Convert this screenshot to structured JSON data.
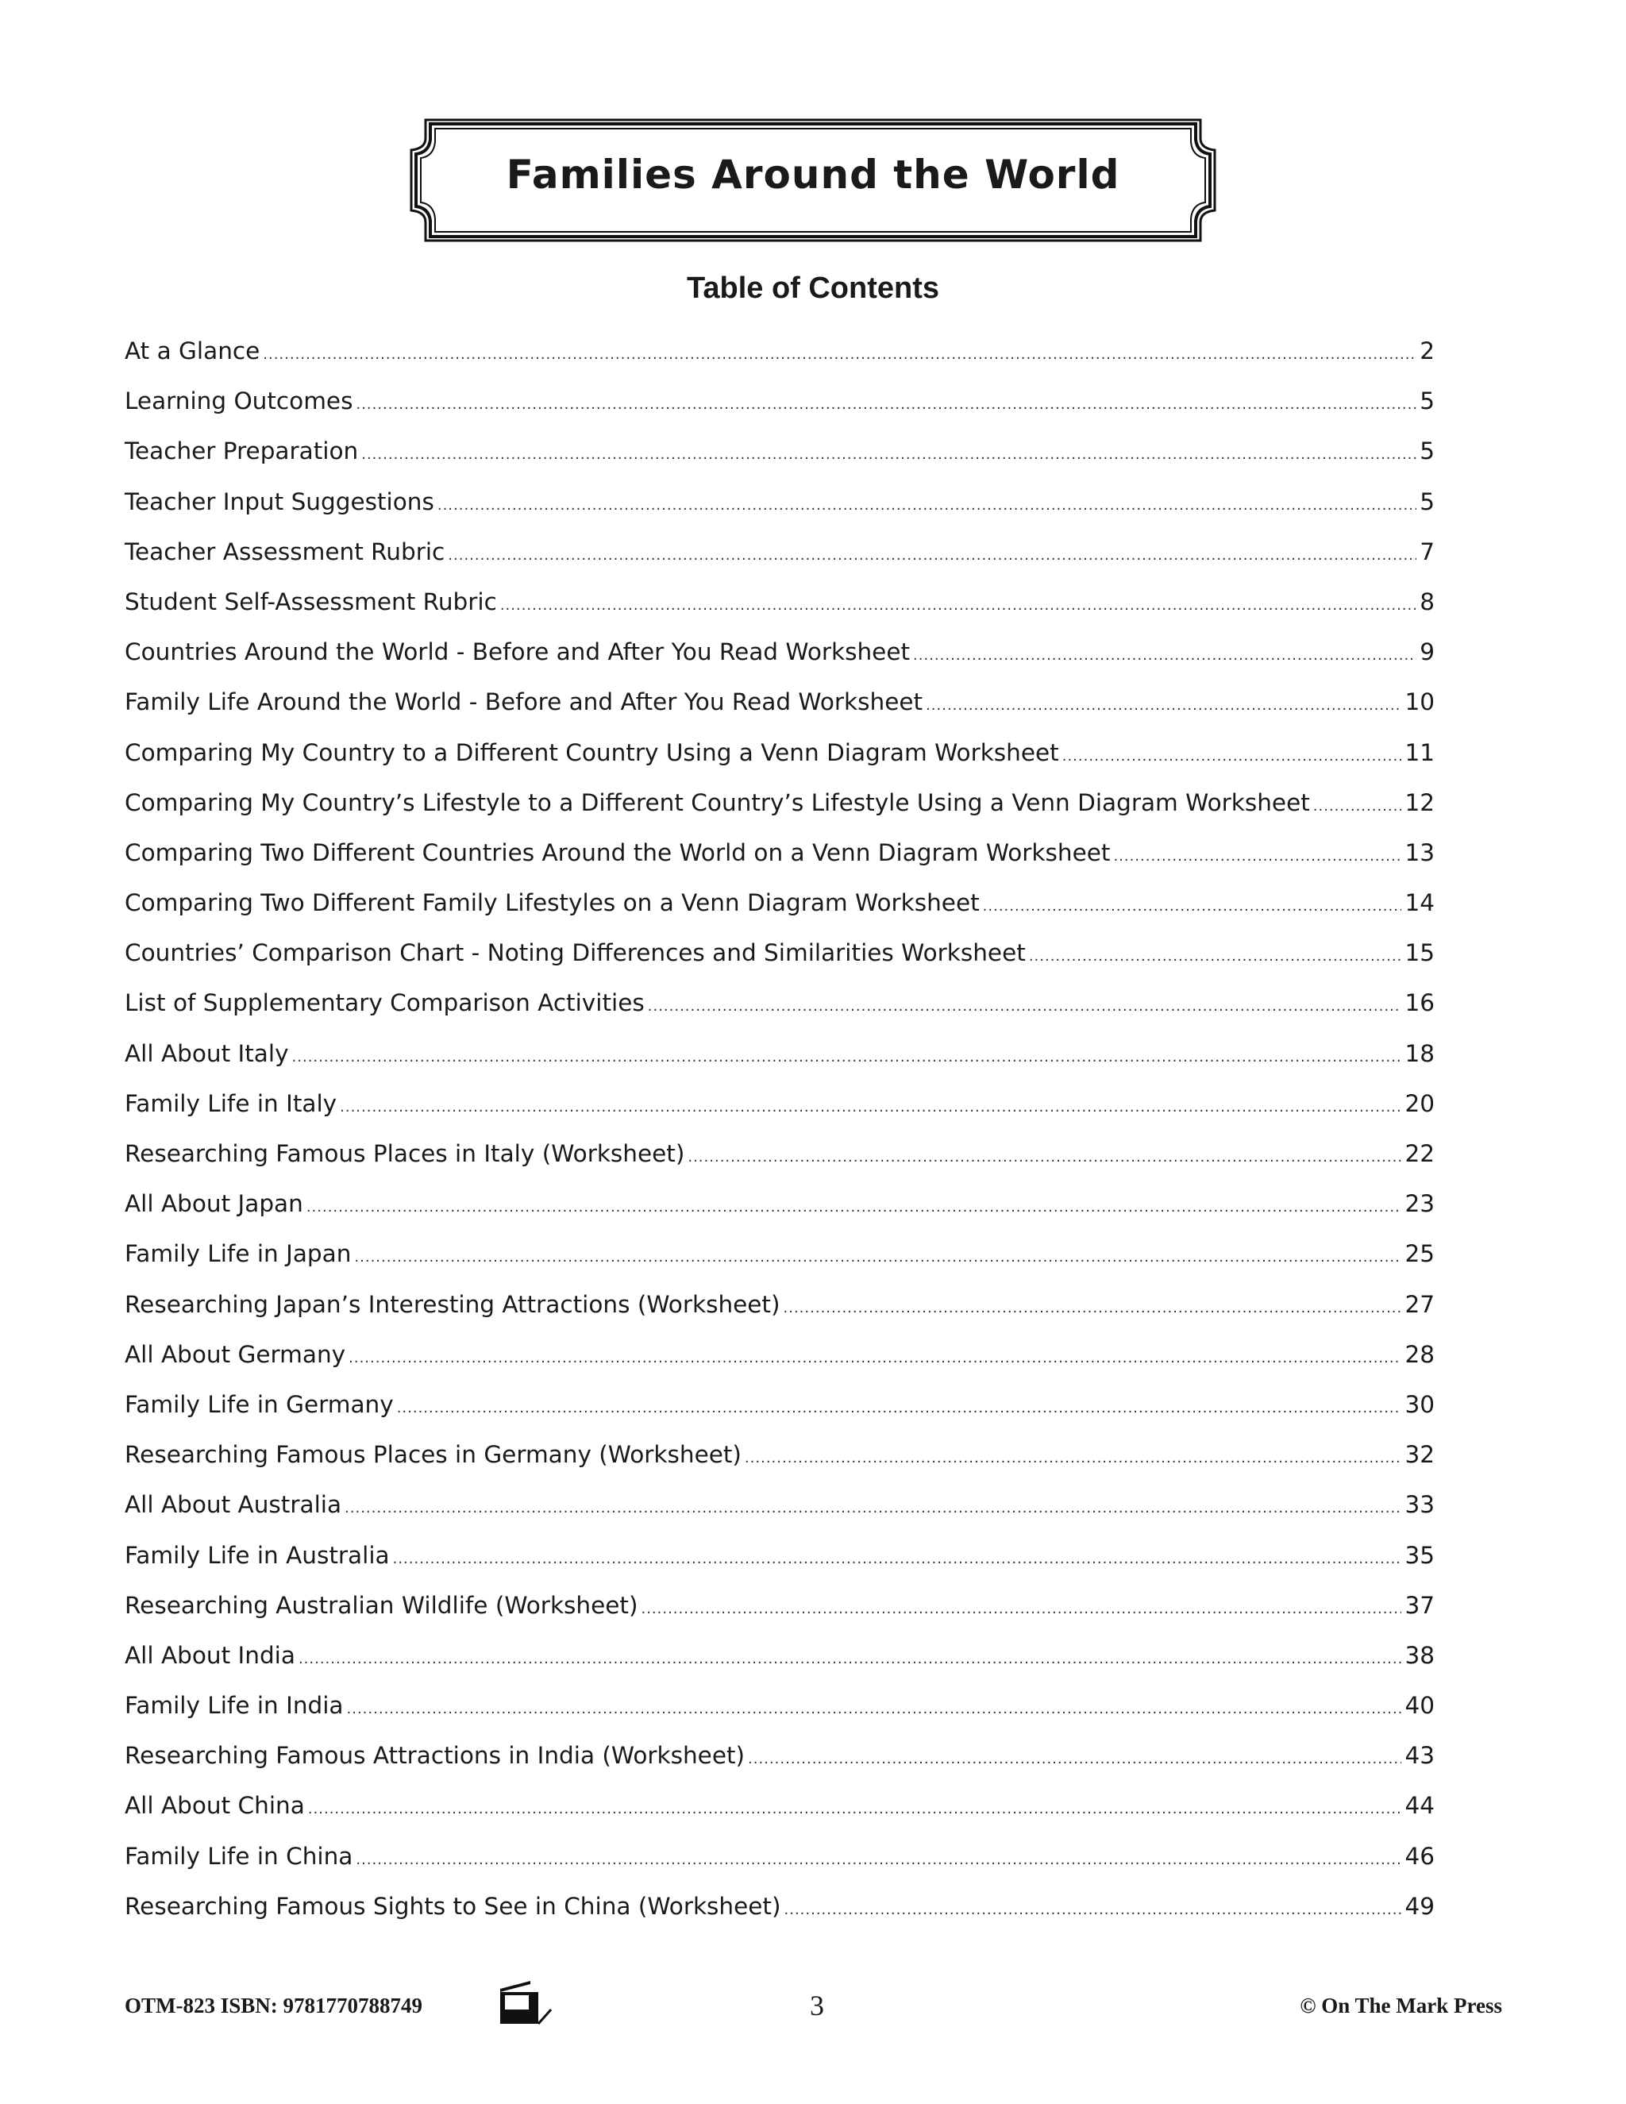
{
  "header": {
    "title": "Families Around the World",
    "toc_heading": "Table of Contents"
  },
  "toc": [
    {
      "label": "At a Glance",
      "page": "2"
    },
    {
      "label": "Learning Outcomes",
      "page": "5"
    },
    {
      "label": "Teacher Preparation",
      "page": "5"
    },
    {
      "label": "Teacher Input Suggestions",
      "page": "5"
    },
    {
      "label": "Teacher Assessment Rubric",
      "page": "7"
    },
    {
      "label": "Student Self-Assessment Rubric",
      "page": "8"
    },
    {
      "label": "Countries Around the World - Before and After You Read Worksheet",
      "page": "9"
    },
    {
      "label": "Family Life Around the World - Before and After You Read Worksheet",
      "page": "10"
    },
    {
      "label": "Comparing My Country to a Different Country Using a Venn Diagram Worksheet",
      "page": "11"
    },
    {
      "label": "Comparing My Country’s Lifestyle to a Different Country’s Lifestyle Using a Venn Diagram Worksheet",
      "page": "12"
    },
    {
      "label": "Comparing Two Different Countries Around the World on a Venn Diagram Worksheet",
      "page": "13"
    },
    {
      "label": "Comparing Two Different Family Lifestyles on a Venn Diagram Worksheet",
      "page": "14"
    },
    {
      "label": "Countries’ Comparison Chart - Noting Differences and Similarities Worksheet",
      "page": "15"
    },
    {
      "label": "List of Supplementary Comparison Activities",
      "page": "16"
    },
    {
      "label": "All About Italy",
      "page": "18"
    },
    {
      "label": "Family Life in Italy",
      "page": "20"
    },
    {
      "label": "Researching Famous Places in Italy (Worksheet)",
      "page": "22"
    },
    {
      "label": "All About Japan",
      "page": "23"
    },
    {
      "label": "Family Life in Japan",
      "page": "25"
    },
    {
      "label": "Researching Japan’s Interesting Attractions (Worksheet)",
      "page": "27"
    },
    {
      "label": "All About Germany",
      "page": "28"
    },
    {
      "label": "Family Life in Germany",
      "page": "30"
    },
    {
      "label": "Researching Famous Places in Germany (Worksheet)",
      "page": "32"
    },
    {
      "label": "All About Australia",
      "page": "33"
    },
    {
      "label": "Family Life in Australia",
      "page": "35"
    },
    {
      "label": "Researching Australian Wildlife (Worksheet)",
      "page": "37"
    },
    {
      "label": "All About India",
      "page": "38"
    },
    {
      "label": "Family Life in India",
      "page": "40"
    },
    {
      "label": "Researching Famous  Attractions in India (Worksheet)",
      "page": "43"
    },
    {
      "label": "All About China",
      "page": "44"
    },
    {
      "label": "Family Life in China",
      "page": "46"
    },
    {
      "label": "Researching Famous Sights to See in China (Worksheet)",
      "page": "49"
    }
  ],
  "footer": {
    "code": "OTM-823  ISBN: 9781770788749",
    "page_number": "3",
    "copyright": "© On The Mark Press",
    "icon": "photocopier-icon"
  }
}
